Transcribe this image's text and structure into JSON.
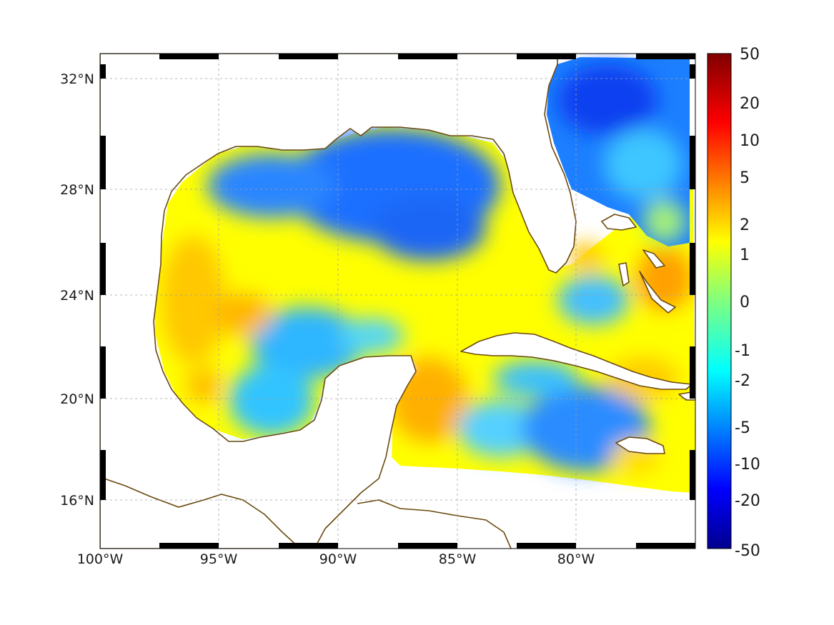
{
  "map": {
    "region": "Gulf of Mexico and Caribbean",
    "lon_range": [
      -100,
      -75
    ],
    "lat_range": [
      14.3,
      33
    ],
    "x_ticks": [
      {
        "lon": -100,
        "label": "100°W"
      },
      {
        "lon": -95,
        "label": "95°W"
      },
      {
        "lon": -90,
        "label": "90°W"
      },
      {
        "lon": -85,
        "label": "85°W"
      },
      {
        "lon": -80,
        "label": "80°W"
      }
    ],
    "y_ticks": [
      {
        "lat": 32,
        "label": "32°N"
      },
      {
        "lat": 28,
        "label": "28°N"
      },
      {
        "lat": 24,
        "label": "24°N"
      },
      {
        "lat": 20,
        "label": "20°N"
      },
      {
        "lat": 16,
        "label": "16°N"
      }
    ],
    "grid": true,
    "coastline_color": "#6b4a10",
    "frame": "alternating black/white border"
  },
  "colorbar": {
    "colormap": "jet",
    "scale": "symmetric log",
    "ticks": [
      "50",
      "20",
      "10",
      "5",
      "2",
      "1",
      "0",
      "-1",
      "-2",
      "-5",
      "-10",
      "-20",
      "-50"
    ],
    "tick_values": [
      50,
      20,
      10,
      5,
      2,
      1,
      0,
      -1,
      -2,
      -5,
      -10,
      -20,
      -50
    ]
  }
}
